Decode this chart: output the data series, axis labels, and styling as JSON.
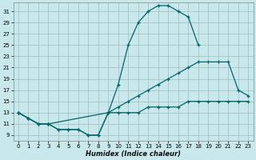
{
  "xlabel": "Humidex (Indice chaleur)",
  "bg_color": "#c8e8ec",
  "grid_color": "#a0bcc0",
  "line_color": "#006666",
  "xlim": [
    -0.5,
    23.5
  ],
  "ylim": [
    8.0,
    32.5
  ],
  "xticks": [
    0,
    1,
    2,
    3,
    4,
    5,
    6,
    7,
    8,
    9,
    10,
    11,
    12,
    13,
    14,
    15,
    16,
    17,
    18,
    19,
    20,
    21,
    22,
    23
  ],
  "yticks": [
    9,
    11,
    13,
    15,
    17,
    19,
    21,
    23,
    25,
    27,
    29,
    31
  ],
  "curve_high_x": [
    0,
    1,
    2,
    3,
    4,
    5,
    6,
    7,
    8,
    9,
    10,
    11,
    12,
    13,
    14,
    15,
    16,
    17,
    18
  ],
  "curve_high_y": [
    13,
    12,
    11,
    11,
    10,
    10,
    10,
    9,
    9,
    13,
    18,
    25,
    29,
    31,
    32,
    32,
    31,
    30,
    25
  ],
  "curve_mid_x": [
    0,
    1,
    2,
    3,
    9,
    10,
    11,
    12,
    13,
    14,
    15,
    16,
    17,
    18,
    19,
    20,
    21,
    22,
    23
  ],
  "curve_mid_y": [
    13,
    12,
    11,
    11,
    13,
    14,
    15,
    16,
    17,
    18,
    19,
    20,
    21,
    22,
    22,
    22,
    22,
    17,
    16
  ],
  "curve_low_x": [
    0,
    1,
    2,
    3,
    4,
    5,
    6,
    7,
    8,
    9,
    10,
    11,
    12,
    13,
    14,
    15,
    16,
    17,
    18,
    19,
    20,
    21,
    22,
    23
  ],
  "curve_low_y": [
    13,
    12,
    11,
    11,
    10,
    10,
    10,
    9,
    9,
    13,
    13,
    13,
    13,
    14,
    14,
    14,
    14,
    15,
    15,
    15,
    15,
    15,
    15,
    15
  ]
}
